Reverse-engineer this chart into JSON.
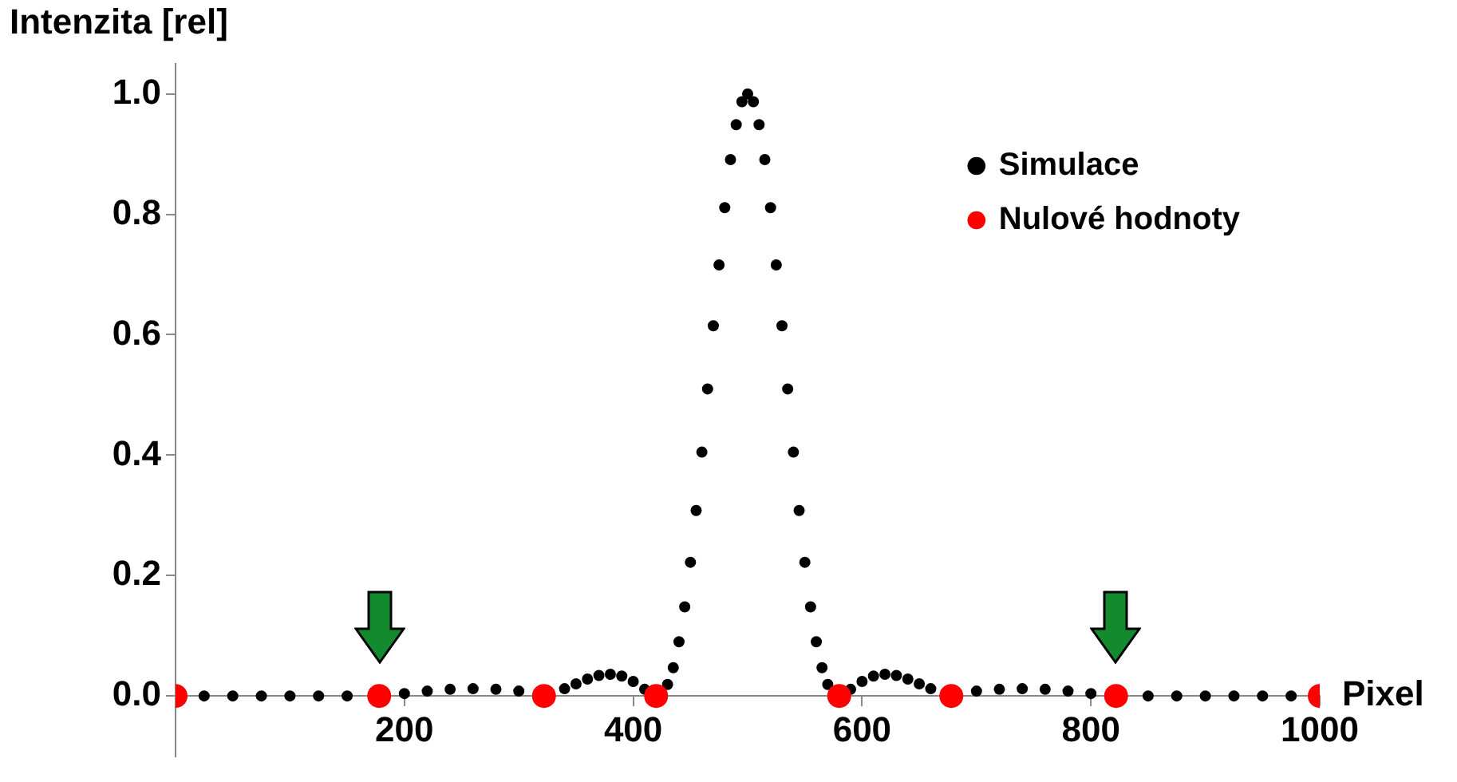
{
  "chart_data": {
    "type": "scatter",
    "ylabel": "Intenzita [rel]",
    "xlabel": "Pixel",
    "xlim": [
      0,
      1000
    ],
    "ylim": [
      -0.1,
      1.05
    ],
    "xticks": [
      200,
      400,
      600,
      800,
      1000
    ],
    "yticks": [
      {
        "value": 0,
        "label": "0.0"
      },
      {
        "value": 0.2,
        "label": "0.2"
      },
      {
        "value": 0.4,
        "label": "0.4"
      },
      {
        "value": 0.6,
        "label": "0.6"
      },
      {
        "value": 0.8,
        "label": "0.8"
      },
      {
        "value": 1,
        "label": "1.0"
      }
    ],
    "legend": "top right",
    "grid": false,
    "series": [
      {
        "name": "Simulace",
        "color": "#000000",
        "marker": "circle",
        "x": [
          25,
          50,
          75,
          100,
          125,
          150,
          200,
          220,
          240,
          260,
          280,
          300,
          340,
          350,
          360,
          370,
          380,
          390,
          400,
          410,
          430,
          435,
          440,
          445,
          450,
          455,
          460,
          465,
          470,
          475,
          480,
          485,
          490,
          495,
          500,
          505,
          510,
          515,
          520,
          525,
          530,
          535,
          540,
          545,
          550,
          555,
          560,
          565,
          570,
          590,
          600,
          610,
          620,
          630,
          640,
          650,
          660,
          700,
          720,
          740,
          760,
          780,
          800,
          850,
          875,
          900,
          925,
          950,
          975
        ],
        "values": [
          0,
          0,
          0,
          0,
          0,
          0,
          0.004,
          0.008,
          0.011,
          0.012,
          0.011,
          0.008,
          0.012,
          0.02,
          0.028,
          0.034,
          0.036,
          0.033,
          0.024,
          0.011,
          0.019,
          0.047,
          0.09,
          0.148,
          0.222,
          0.308,
          0.405,
          0.51,
          0.615,
          0.716,
          0.811,
          0.891,
          0.949,
          0.987,
          1,
          0.987,
          0.949,
          0.891,
          0.811,
          0.716,
          0.615,
          0.51,
          0.405,
          0.308,
          0.222,
          0.148,
          0.09,
          0.047,
          0.019,
          0.011,
          0.024,
          0.033,
          0.036,
          0.034,
          0.028,
          0.02,
          0.012,
          0.008,
          0.011,
          0.012,
          0.011,
          0.008,
          0.004,
          0,
          0,
          0,
          0,
          0,
          0
        ]
      },
      {
        "name": "Nulové hodnoty",
        "color": "#ff0000",
        "marker": "circle",
        "x": [
          0,
          178,
          322,
          420,
          580,
          678,
          822,
          1000
        ],
        "values": [
          0,
          0,
          0,
          0,
          0,
          0,
          0,
          0
        ]
      }
    ]
  }
}
